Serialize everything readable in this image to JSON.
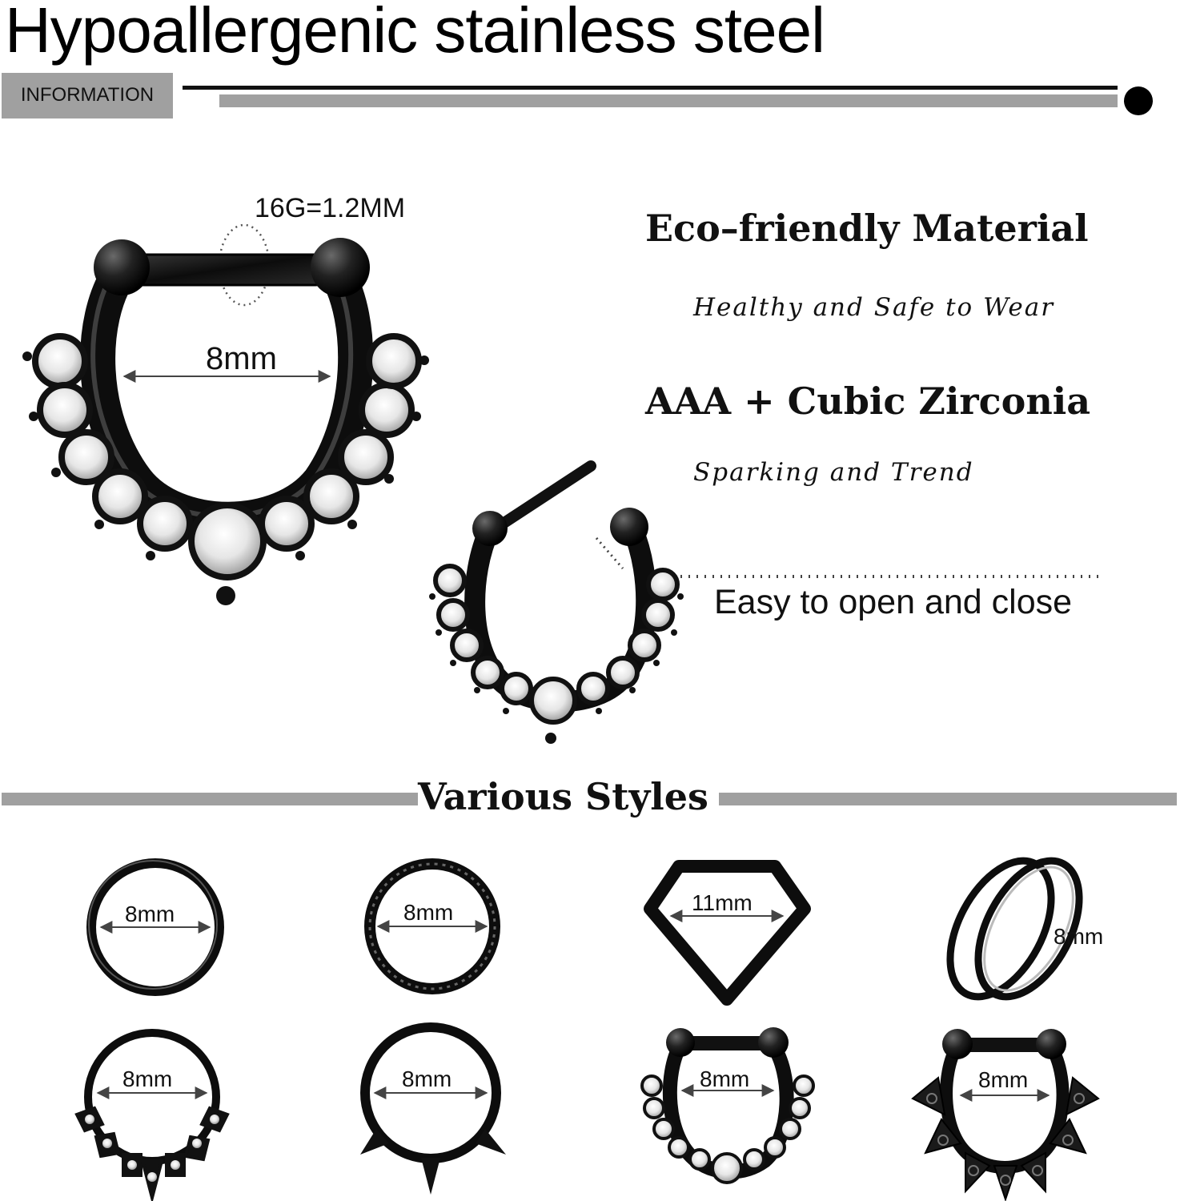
{
  "header": {
    "title": "Hypoallergenic stainless steel",
    "badge_label": "INFORMATION"
  },
  "hero": {
    "gauge_label": "16G=1.2MM",
    "main_size_label": "8mm"
  },
  "features": [
    {
      "heading": "Eco–friendly Material",
      "subtext": "Healthy and Safe to Wear"
    },
    {
      "heading": "AAA + Cubic Zirconia",
      "subtext": "Sparking and Trend"
    }
  ],
  "callout": {
    "text": "Easy to open and close"
  },
  "styles_section": {
    "title": "Various Styles",
    "items": [
      {
        "icon": "plain-hoop-ring-icon",
        "size": "8mm"
      },
      {
        "icon": "twisted-hoop-ring-icon",
        "size": "8mm"
      },
      {
        "icon": "diamond-shape-clicker-icon",
        "size": "11mm"
      },
      {
        "icon": "double-hoop-ring-icon",
        "size": "8mm"
      },
      {
        "icon": "jeweled-leaf-hoop-icon",
        "size": "8mm"
      },
      {
        "icon": "spiked-hoop-ring-icon",
        "size": "8mm"
      },
      {
        "icon": "crystal-septum-clicker-icon",
        "size": "8mm"
      },
      {
        "icon": "filigree-septum-clicker-icon",
        "size": "8mm"
      }
    ]
  },
  "colors": {
    "accent_gray": "#a0a0a0",
    "ink": "#111111",
    "metal": "#1a1a1a"
  }
}
